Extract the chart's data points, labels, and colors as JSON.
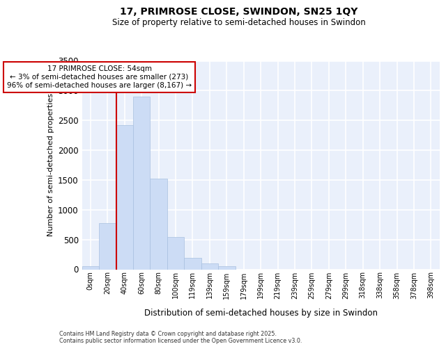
{
  "title1": "17, PRIMROSE CLOSE, SWINDON, SN25 1QY",
  "title2": "Size of property relative to semi-detached houses in Swindon",
  "xlabel": "Distribution of semi-detached houses by size in Swindon",
  "ylabel": "Number of semi-detached properties",
  "bar_color": "#ccdcf5",
  "bar_edgecolor": "#a8c0e0",
  "background_color": "#eaf0fb",
  "grid_color": "#ffffff",
  "categories": [
    "0sqm",
    "20sqm",
    "40sqm",
    "60sqm",
    "80sqm",
    "100sqm",
    "119sqm",
    "139sqm",
    "159sqm",
    "179sqm",
    "199sqm",
    "219sqm",
    "239sqm",
    "259sqm",
    "279sqm",
    "299sqm",
    "318sqm",
    "338sqm",
    "358sqm",
    "378sqm",
    "398sqm"
  ],
  "values": [
    50,
    780,
    2420,
    2900,
    1520,
    540,
    190,
    100,
    55,
    0,
    0,
    0,
    0,
    0,
    0,
    0,
    0,
    0,
    0,
    0,
    0
  ],
  "ylim": [
    0,
    3500
  ],
  "yticks": [
    0,
    500,
    1000,
    1500,
    2000,
    2500,
    3000,
    3500
  ],
  "vline_x": 2.0,
  "annotation_text": "17 PRIMROSE CLOSE: 54sqm\n← 3% of semi-detached houses are smaller (273)\n96% of semi-detached houses are larger (8,167) →",
  "vline_color": "#cc0000",
  "annot_facecolor": "#ffffff",
  "annot_edgecolor": "#cc0000",
  "footer1": "Contains HM Land Registry data © Crown copyright and database right 2025.",
  "footer2": "Contains public sector information licensed under the Open Government Licence v3.0."
}
